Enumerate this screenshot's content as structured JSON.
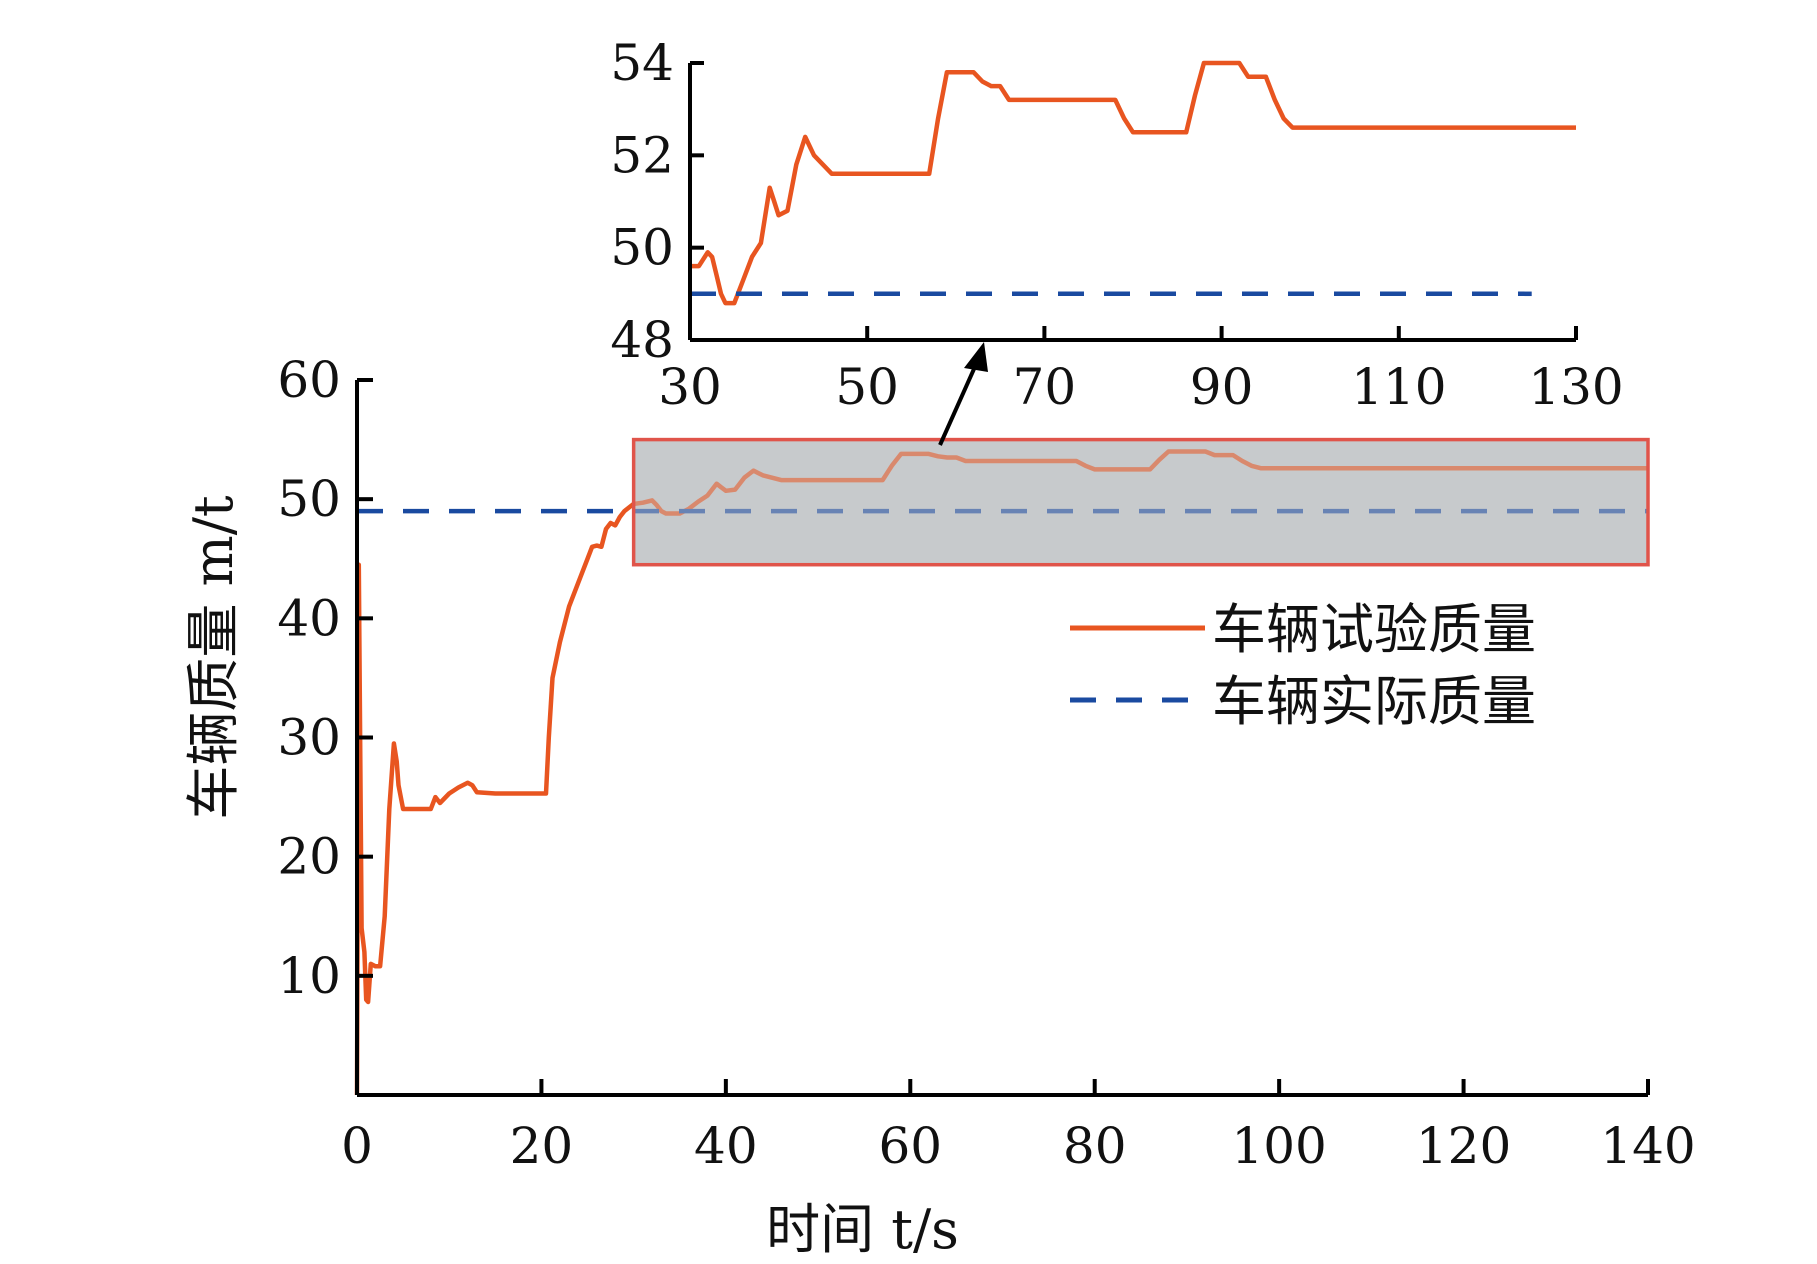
{
  "chart_data": [
    {
      "type": "line",
      "xlabel": "时间 t/s",
      "ylabel": "车辆质量 m/t",
      "xlim": [
        0,
        140
      ],
      "ylim": [
        0,
        60
      ],
      "xticks": [
        0,
        20,
        40,
        60,
        80,
        100,
        120,
        140
      ],
      "yticks": [
        10,
        20,
        30,
        40,
        50,
        60
      ],
      "x_origin_label": "0",
      "legend": {
        "position": "right"
      },
      "highlight_region": {
        "x": [
          30,
          140
        ],
        "y": [
          44.5,
          55
        ],
        "fill": "#c7cacd",
        "stroke": "#e0544a"
      },
      "series": [
        {
          "name": "车辆试验质量",
          "color": "#e85520",
          "style": "solid",
          "points": [
            [
              0,
              0
            ],
            [
              0.2,
              44.5
            ],
            [
              0.5,
              14
            ],
            [
              0.8,
              12
            ],
            [
              1.0,
              8
            ],
            [
              1.2,
              7.8
            ],
            [
              1.5,
              11
            ],
            [
              2,
              10.8
            ],
            [
              2.5,
              10.8
            ],
            [
              3,
              15
            ],
            [
              3.5,
              24
            ],
            [
              4,
              29.5
            ],
            [
              4.3,
              28
            ],
            [
              4.5,
              26
            ],
            [
              5,
              24
            ],
            [
              6,
              24
            ],
            [
              7,
              24
            ],
            [
              8,
              24
            ],
            [
              8.5,
              25
            ],
            [
              9,
              24.5
            ],
            [
              10,
              25.3
            ],
            [
              11,
              25.8
            ],
            [
              12,
              26.2
            ],
            [
              12.5,
              26
            ],
            [
              13,
              25.4
            ],
            [
              15,
              25.3
            ],
            [
              17,
              25.3
            ],
            [
              19,
              25.3
            ],
            [
              20.5,
              25.3
            ],
            [
              20.8,
              30
            ],
            [
              21.2,
              35
            ],
            [
              22,
              38
            ],
            [
              23,
              41
            ],
            [
              24,
              43
            ],
            [
              25,
              45
            ],
            [
              25.5,
              46
            ],
            [
              26,
              46.1
            ],
            [
              26.5,
              46
            ],
            [
              27,
              47.5
            ],
            [
              27.5,
              48
            ],
            [
              28,
              47.8
            ],
            [
              28.5,
              48.5
            ],
            [
              29,
              49
            ],
            [
              30,
              49.6
            ],
            [
              31,
              49.7
            ],
            [
              32,
              49.9
            ],
            [
              32.5,
              49.5
            ],
            [
              33,
              49
            ],
            [
              33.5,
              48.8
            ],
            [
              34,
              48.8
            ],
            [
              35,
              48.8
            ],
            [
              36,
              49.2
            ],
            [
              37,
              49.8
            ],
            [
              38,
              50.3
            ],
            [
              39,
              51.3
            ],
            [
              39.5,
              51
            ],
            [
              40,
              50.7
            ],
            [
              41,
              50.8
            ],
            [
              42,
              51.8
            ],
            [
              43,
              52.4
            ],
            [
              43.5,
              52.2
            ],
            [
              44,
              52
            ],
            [
              45,
              51.8
            ],
            [
              46,
              51.6
            ],
            [
              50,
              51.6
            ],
            [
              55,
              51.6
            ],
            [
              57,
              51.6
            ],
            [
              58,
              52.8
            ],
            [
              59,
              53.8
            ],
            [
              60,
              53.8
            ],
            [
              62,
              53.8
            ],
            [
              63,
              53.6
            ],
            [
              64,
              53.5
            ],
            [
              65,
              53.5
            ],
            [
              66,
              53.2
            ],
            [
              70,
              53.2
            ],
            [
              75,
              53.2
            ],
            [
              78,
              53.2
            ],
            [
              79,
              52.8
            ],
            [
              80,
              52.5
            ],
            [
              82,
              52.5
            ],
            [
              85,
              52.5
            ],
            [
              86,
              52.5
            ],
            [
              87,
              53.3
            ],
            [
              88,
              54
            ],
            [
              90,
              54
            ],
            [
              92,
              54
            ],
            [
              93,
              53.7
            ],
            [
              95,
              53.7
            ],
            [
              96,
              53.2
            ],
            [
              97,
              52.8
            ],
            [
              98,
              52.6
            ],
            [
              100,
              52.6
            ],
            [
              110,
              52.6
            ],
            [
              120,
              52.6
            ],
            [
              130,
              52.6
            ],
            [
              140,
              52.6
            ]
          ]
        },
        {
          "name": "车辆实际质量",
          "color": "#1a4aa0",
          "style": "dashed",
          "points": [
            [
              0,
              49
            ],
            [
              140,
              49
            ]
          ]
        }
      ]
    },
    {
      "type": "line",
      "role": "inset",
      "xlim": [
        30,
        130
      ],
      "ylim": [
        48,
        54
      ],
      "xticks": [
        30,
        50,
        70,
        90,
        110,
        130
      ],
      "yticks": [
        48,
        50,
        52,
        54
      ],
      "series": [
        {
          "name": "车辆试验质量",
          "color": "#e85520",
          "style": "solid",
          "points": [
            [
              30,
              49.6
            ],
            [
              31,
              49.6
            ],
            [
              32,
              49.9
            ],
            [
              32.5,
              49.8
            ],
            [
              33,
              49.4
            ],
            [
              33.5,
              49
            ],
            [
              34,
              48.8
            ],
            [
              35,
              48.8
            ],
            [
              36,
              49.3
            ],
            [
              37,
              49.8
            ],
            [
              38,
              50.1
            ],
            [
              39,
              51.3
            ],
            [
              39.5,
              51
            ],
            [
              40,
              50.7
            ],
            [
              41,
              50.8
            ],
            [
              42,
              51.8
            ],
            [
              43,
              52.4
            ],
            [
              43.5,
              52.2
            ],
            [
              44,
              52
            ],
            [
              45,
              51.8
            ],
            [
              46,
              51.6
            ],
            [
              50,
              51.6
            ],
            [
              55,
              51.6
            ],
            [
              57,
              51.6
            ],
            [
              58,
              52.8
            ],
            [
              59,
              53.8
            ],
            [
              60,
              53.8
            ],
            [
              62,
              53.8
            ],
            [
              63,
              53.6
            ],
            [
              64,
              53.5
            ],
            [
              65,
              53.5
            ],
            [
              66,
              53.2
            ],
            [
              70,
              53.2
            ],
            [
              75,
              53.2
            ],
            [
              78,
              53.2
            ],
            [
              79,
              52.8
            ],
            [
              80,
              52.5
            ],
            [
              82,
              52.5
            ],
            [
              85,
              52.5
            ],
            [
              86,
              52.5
            ],
            [
              87,
              53.3
            ],
            [
              88,
              54
            ],
            [
              90,
              54
            ],
            [
              92,
              54
            ],
            [
              93,
              53.7
            ],
            [
              95,
              53.7
            ],
            [
              96,
              53.2
            ],
            [
              97,
              52.8
            ],
            [
              98,
              52.6
            ],
            [
              100,
              52.6
            ],
            [
              110,
              52.6
            ],
            [
              120,
              52.6
            ],
            [
              130,
              52.6
            ]
          ]
        },
        {
          "name": "车辆实际质量",
          "color": "#1a4aa0",
          "style": "dashed",
          "points": [
            [
              30,
              49
            ],
            [
              125,
              49
            ]
          ]
        }
      ]
    }
  ],
  "legend": {
    "items": [
      {
        "label": "车辆试验质量",
        "color": "#e85520",
        "style": "solid"
      },
      {
        "label": "车辆实际质量",
        "color": "#1a4aa0",
        "style": "dashed"
      }
    ]
  }
}
